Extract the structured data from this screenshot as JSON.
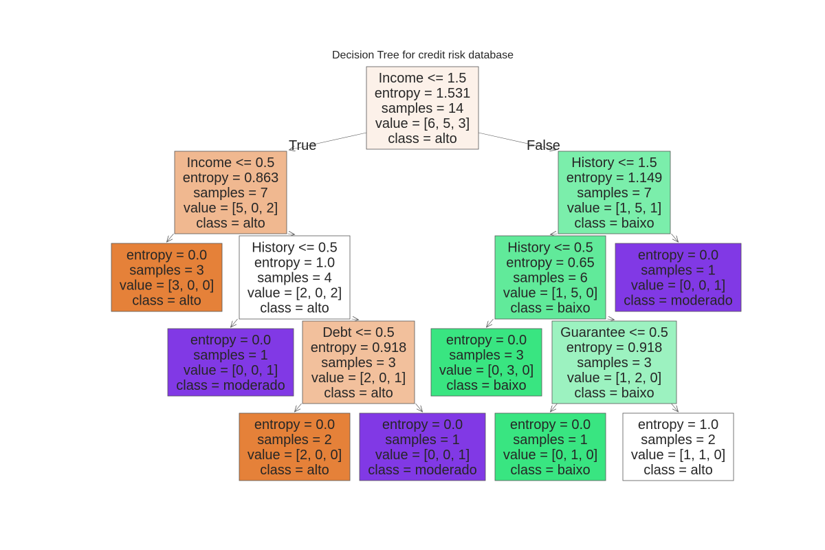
{
  "title": "Decision Tree for credit risk database",
  "class_colors": {
    "alto": "#e58139",
    "baixo": "#39e581",
    "moderado": "#8139e5"
  },
  "edge_labels": {
    "true": "True",
    "false": "False"
  },
  "nodes": [
    {
      "id": "n0",
      "lines": [
        "Income <= 1.5",
        "entropy = 1.531",
        "samples = 14",
        "value = [6, 5, 3]",
        "class = alto"
      ],
      "fill": "#fcf1e9"
    },
    {
      "id": "n1",
      "lines": [
        "Income <= 0.5",
        "entropy = 0.863",
        "samples = 7",
        "value = [5, 0, 2]",
        "class = alto"
      ],
      "fill": "#f0b890"
    },
    {
      "id": "n2",
      "lines": [
        "entropy = 0.0",
        "samples = 3",
        "value = [3, 0, 0]",
        "class = alto"
      ],
      "fill": "#e58139"
    },
    {
      "id": "n3",
      "lines": [
        "History <= 0.5",
        "entropy = 1.0",
        "samples = 4",
        "value = [2, 0, 2]",
        "class = alto"
      ],
      "fill": "#ffffff"
    },
    {
      "id": "n4",
      "lines": [
        "entropy = 0.0",
        "samples = 1",
        "value = [0, 0, 1]",
        "class = moderado"
      ],
      "fill": "#8139e5"
    },
    {
      "id": "n5",
      "lines": [
        "Debt <= 0.5",
        "entropy = 0.918",
        "samples = 3",
        "value = [2, 0, 1]",
        "class = alto"
      ],
      "fill": "#f2c09c"
    },
    {
      "id": "n6",
      "lines": [
        "entropy = 0.0",
        "samples = 2",
        "value = [2, 0, 0]",
        "class = alto"
      ],
      "fill": "#e58139"
    },
    {
      "id": "n7",
      "lines": [
        "entropy = 0.0",
        "samples = 1",
        "value = [0, 0, 1]",
        "class = moderado"
      ],
      "fill": "#8139e5"
    },
    {
      "id": "n8",
      "lines": [
        "History <= 1.5",
        "entropy = 1.149",
        "samples = 7",
        "value = [1, 5, 1]",
        "class = baixo"
      ],
      "fill": "#7beeab"
    },
    {
      "id": "n9",
      "lines": [
        "History <= 0.5",
        "entropy = 0.65",
        "samples = 6",
        "value = [1, 5, 0]",
        "class = baixo"
      ],
      "fill": "#61ea9a"
    },
    {
      "id": "n10",
      "lines": [
        "entropy = 0.0",
        "samples = 3",
        "value = [0, 3, 0]",
        "class = baixo"
      ],
      "fill": "#39e581"
    },
    {
      "id": "n11",
      "lines": [
        "Guarantee <= 0.5",
        "entropy = 0.918",
        "samples = 3",
        "value = [1, 2, 0]",
        "class = baixo"
      ],
      "fill": "#9cf2c0"
    },
    {
      "id": "n12",
      "lines": [
        "entropy = 0.0",
        "samples = 1",
        "value = [0, 1, 0]",
        "class = baixo"
      ],
      "fill": "#39e581"
    },
    {
      "id": "n13",
      "lines": [
        "entropy = 1.0",
        "samples = 2",
        "value = [1, 1, 0]",
        "class = alto"
      ],
      "fill": "#ffffff"
    },
    {
      "id": "n14",
      "lines": [
        "entropy = 0.0",
        "samples = 1",
        "value = [0, 0, 1]",
        "class = moderado"
      ],
      "fill": "#8139e5"
    }
  ],
  "edges": [
    {
      "from": "n0",
      "to": "n1",
      "label": "true"
    },
    {
      "from": "n0",
      "to": "n8",
      "label": "false"
    },
    {
      "from": "n1",
      "to": "n2"
    },
    {
      "from": "n1",
      "to": "n3"
    },
    {
      "from": "n3",
      "to": "n4"
    },
    {
      "from": "n3",
      "to": "n5"
    },
    {
      "from": "n5",
      "to": "n6"
    },
    {
      "from": "n5",
      "to": "n7"
    },
    {
      "from": "n8",
      "to": "n9"
    },
    {
      "from": "n8",
      "to": "n14"
    },
    {
      "from": "n9",
      "to": "n10"
    },
    {
      "from": "n9",
      "to": "n11"
    },
    {
      "from": "n11",
      "to": "n12"
    },
    {
      "from": "n11",
      "to": "n13"
    }
  ]
}
